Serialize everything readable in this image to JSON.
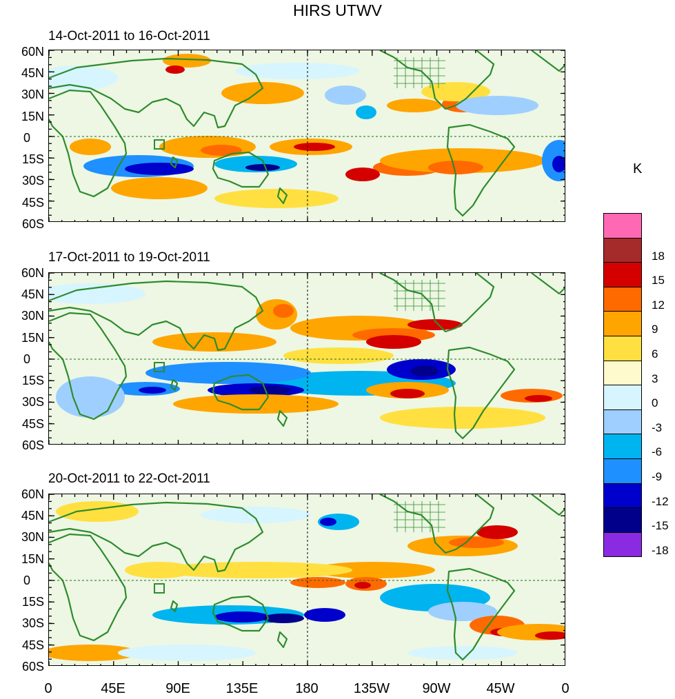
{
  "title": "HIRS UTWV",
  "panels": [
    {
      "label": "14-Oct-2011 to 16-Oct-2011"
    },
    {
      "label": "17-Oct-2011 to 19-Oct-2011"
    },
    {
      "label": "20-Oct-2011 to 22-Oct-2011"
    }
  ],
  "lat_labels": [
    "60N",
    "45N",
    "30N",
    "15N",
    "0",
    "15S",
    "30S",
    "45S",
    "60S"
  ],
  "lon_labels": [
    "0",
    "45E",
    "90E",
    "135E",
    "180",
    "135W",
    "90W",
    "45W",
    "0"
  ],
  "colorbar": {
    "unit": "K",
    "levels": [
      "18",
      "15",
      "12",
      "9",
      "6",
      "3",
      "0",
      "-3",
      "-6",
      "-9",
      "-12",
      "-15",
      "-18"
    ],
    "colors": [
      "#ff69b4",
      "#a52a2a",
      "#d40000",
      "#ff6a00",
      "#ffa500",
      "#ffe040",
      "#fffacd",
      "#d7f5ff",
      "#9ecfff",
      "#00b4f0",
      "#1e90ff",
      "#0000cd",
      "#00008b",
      "#8a2be2"
    ]
  },
  "map_colors": {
    "land": "#2e8b2e",
    "neutral": "#fffacd",
    "equator": "#1a6b1a"
  }
}
